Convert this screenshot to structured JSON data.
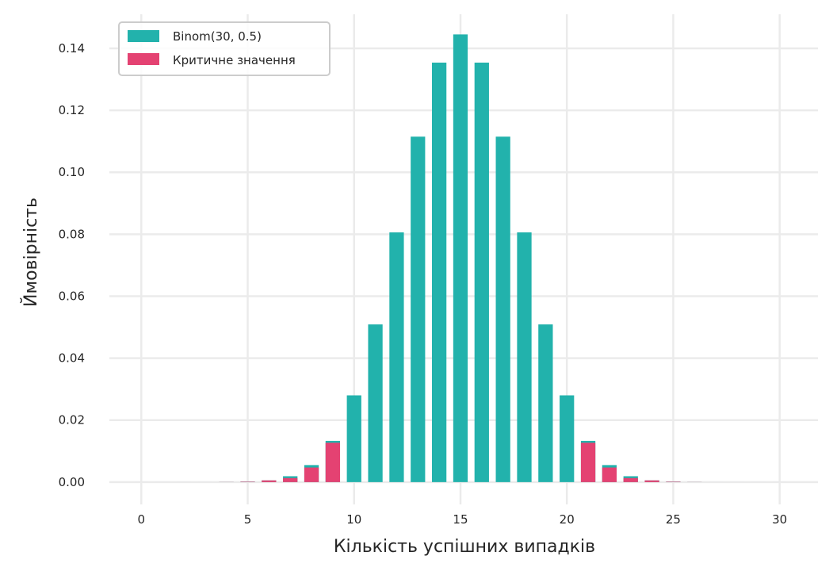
{
  "chart_data": {
    "type": "bar",
    "xlabel": "Кількість успішних випадків",
    "ylabel": "Ймовірність",
    "xlim": [
      -1.5,
      31.8
    ],
    "ylim": [
      -0.0072,
      0.151
    ],
    "x_ticks": [
      0,
      5,
      10,
      15,
      20,
      25,
      30
    ],
    "y_ticks": [
      0.0,
      0.02,
      0.04,
      0.06,
      0.08,
      0.1,
      0.12,
      0.14
    ],
    "y_tick_labels": [
      "0.00",
      "0.02",
      "0.04",
      "0.06",
      "0.08",
      "0.10",
      "0.12",
      "0.14"
    ],
    "grid": true,
    "legend_position": "top-left",
    "x": [
      0,
      1,
      2,
      3,
      4,
      5,
      6,
      7,
      8,
      9,
      10,
      11,
      12,
      13,
      14,
      15,
      16,
      17,
      18,
      19,
      20,
      21,
      22,
      23,
      24,
      25,
      26,
      27,
      28,
      29,
      30
    ],
    "series": [
      {
        "name": "Binom(30, 0.5)",
        "color": "#22b2ac",
        "values": [
          0,
          0,
          0,
          0,
          3e-05,
          0.00013,
          0.00055,
          0.0019,
          0.0055,
          0.0133,
          0.028,
          0.0509,
          0.0806,
          0.1115,
          0.1354,
          0.1445,
          0.1354,
          0.1115,
          0.0806,
          0.0509,
          0.028,
          0.0133,
          0.0055,
          0.0019,
          0.00055,
          0.00013,
          3e-05,
          0,
          0,
          0,
          0
        ]
      },
      {
        "name": "Критичне значення",
        "color": "#e44272",
        "x": [
          0,
          1,
          2,
          3,
          4,
          5,
          6,
          7,
          8,
          9,
          21,
          22,
          23,
          24,
          25,
          26,
          27,
          28,
          29,
          30
        ],
        "values": [
          0,
          0,
          0,
          0,
          3e-05,
          0.00013,
          0.00055,
          0.0013,
          0.0047,
          0.0127,
          0.0127,
          0.0047,
          0.0013,
          0.00055,
          0.00013,
          3e-05,
          0,
          0,
          0,
          0
        ]
      }
    ]
  }
}
